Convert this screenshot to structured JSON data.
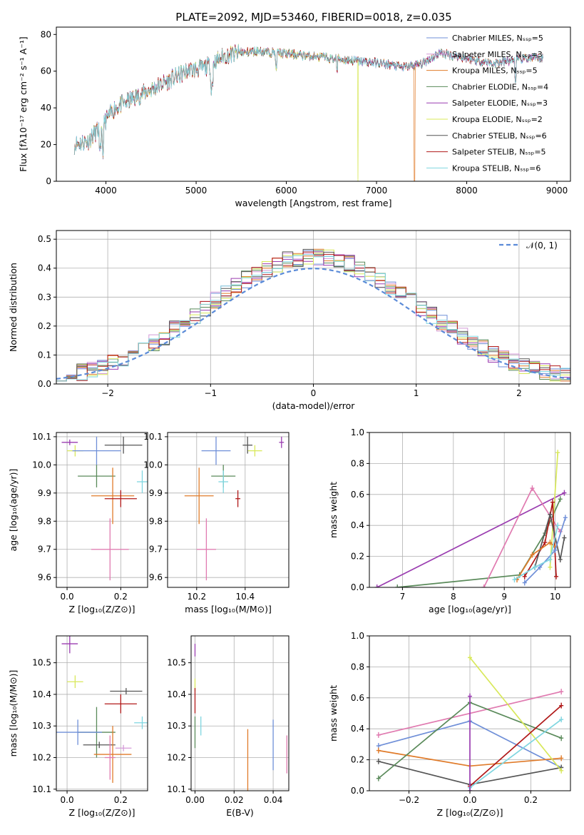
{
  "figure": {
    "title": "PLATE=2092, MJD=53460, FIBERID=0018, z=0.035"
  },
  "colors": {
    "Chabrier MILES": "#6f8fd8",
    "Salpeter MILES": "#d49ad8",
    "Kroupa MILES": "#e07b2a",
    "Chabrier ELODIE": "#5a8a5a",
    "Salpeter ELODIE": "#9a3cb0",
    "Kroupa ELODIE": "#d8e85a",
    "Chabrier STELIB": "#555555",
    "Salpeter STELIB": "#b01818",
    "Kroupa STELIB": "#7fd6e0",
    "pink": "#e07ab0",
    "gauss": "#5b8bd8"
  },
  "chart_data": [
    {
      "id": "spectrum",
      "type": "line",
      "title": "PLATE=2092, MJD=53460, FIBERID=0018, z=0.035",
      "xlabel": "wavelength [Angstrom, rest frame]",
      "ylabel": "Flux [fλ10⁻¹⁷ erg cm⁻² s⁻¹ A⁻¹]",
      "xlim": [
        3450,
        9150
      ],
      "ylim": [
        0,
        84
      ],
      "xticks": [
        4000,
        5000,
        6000,
        7000,
        8000,
        9000
      ],
      "yticks": [
        0,
        20,
        40,
        60,
        80
      ],
      "legend_position": "top-right",
      "legend": [
        "Chabrier MILES, Nₛₛₚ=5",
        "Salpeter MILES, Nₛₛₚ=3",
        "Kroupa MILES, Nₛₛₚ=5",
        "Chabrier ELODIE, Nₛₛₚ=4",
        "Salpeter ELODIE, Nₛₛₚ=3",
        "Kroupa ELODIE, Nₛₛₚ=2",
        "Chabrier STELIB, Nₛₛₚ=6",
        "Salpeter STELIB, Nₛₛₚ=5",
        "Kroupa STELIB, Nₛₛₚ=6"
      ],
      "continuum": {
        "x": [
          3650,
          3800,
          3950,
          4100,
          4300,
          4500,
          4700,
          4900,
          5100,
          5300,
          5500,
          5700,
          5900,
          6100,
          6300,
          6500,
          6700,
          6900,
          7100,
          7300,
          7500,
          7700,
          7900,
          8100,
          8300,
          8500,
          8700,
          8850
        ],
        "y": [
          20,
          22,
          30,
          40,
          45,
          50,
          55,
          60,
          62,
          68,
          70,
          71,
          70,
          69,
          68,
          67,
          66,
          65,
          64,
          62,
          64,
          70,
          68,
          66,
          64,
          66,
          67,
          67
        ]
      }
    },
    {
      "id": "residuals",
      "type": "histogram",
      "xlabel": "(data-model)/error",
      "ylabel": "Normed distribution",
      "xlim": [
        -2.5,
        2.5
      ],
      "ylim": [
        0,
        0.53
      ],
      "xticks": [
        -2,
        -1,
        0,
        1,
        2
      ],
      "yticks": [
        0.0,
        0.1,
        0.2,
        0.3,
        0.4,
        0.5
      ],
      "grid": true,
      "legend_position": "top-right",
      "legend": [
        "𝒩(0, 1)"
      ],
      "bin_width": 0.1
    },
    {
      "id": "age_vs_Z",
      "type": "errorbar",
      "xlabel": "Z [log₁₀(Z/Z⊙)]",
      "ylabel": "age  [log₁₀(age/yr)]",
      "xlim": [
        -0.04,
        0.3
      ],
      "ylim": [
        9.565,
        10.115
      ],
      "xticks": [
        0.0,
        0.2
      ],
      "yticks": [
        9.6,
        9.7,
        9.8,
        9.9,
        10.0,
        10.1
      ],
      "grid": true,
      "points": [
        {
          "model": "Salpeter ELODIE",
          "x": 0.01,
          "y": 10.08,
          "xerr": 0.03,
          "yerr": 0.01
        },
        {
          "model": "Kroupa ELODIE",
          "x": 0.03,
          "y": 10.05,
          "xerr": 0.03,
          "yerr": 0.02
        },
        {
          "model": "Chabrier MILES",
          "x": 0.11,
          "y": 10.05,
          "xerr": 0.09,
          "yerr": 0.05
        },
        {
          "model": "Chabrier STELIB",
          "x": 0.21,
          "y": 10.07,
          "xerr": 0.07,
          "yerr": 0.03
        },
        {
          "model": "Chabrier ELODIE",
          "x": 0.11,
          "y": 9.96,
          "xerr": 0.07,
          "yerr": 0.04
        },
        {
          "model": "Kroupa STELIB",
          "x": 0.28,
          "y": 9.94,
          "xerr": 0.02,
          "yerr": 0.04
        },
        {
          "model": "Kroupa MILES",
          "x": 0.17,
          "y": 9.89,
          "xerr": 0.08,
          "yerr": 0.1
        },
        {
          "model": "Salpeter STELIB",
          "x": 0.2,
          "y": 9.88,
          "xerr": 0.06,
          "yerr": 0.03
        },
        {
          "model": "pink",
          "x": 0.16,
          "y": 9.7,
          "xerr": 0.07,
          "yerr": 0.11
        }
      ]
    },
    {
      "id": "age_vs_mass",
      "type": "errorbar",
      "xlabel": "mass [log₁₀(M/M⊙)]",
      "ylabel": "",
      "xlim": [
        10.08,
        10.58
      ],
      "ylim": [
        9.565,
        10.115
      ],
      "xticks": [
        10.2,
        10.4
      ],
      "yticks": [
        9.6,
        9.7,
        9.8,
        9.9,
        10.0,
        10.1
      ],
      "grid": true,
      "points": [
        {
          "model": "Salpeter ELODIE",
          "x": 10.55,
          "y": 10.08,
          "xerr": 0.01,
          "yerr": 0.02
        },
        {
          "model": "Kroupa ELODIE",
          "x": 10.44,
          "y": 10.05,
          "xerr": 0.03,
          "yerr": 0.02
        },
        {
          "model": "Chabrier MILES",
          "x": 10.28,
          "y": 10.05,
          "xerr": 0.06,
          "yerr": 0.05
        },
        {
          "model": "Chabrier STELIB",
          "x": 10.41,
          "y": 10.07,
          "xerr": 0.02,
          "yerr": 0.03
        },
        {
          "model": "Chabrier ELODIE",
          "x": 10.31,
          "y": 9.96,
          "xerr": 0.05,
          "yerr": 0.04
        },
        {
          "model": "Kroupa STELIB",
          "x": 10.31,
          "y": 9.94,
          "xerr": 0.02,
          "yerr": 0.04
        },
        {
          "model": "Kroupa MILES",
          "x": 10.21,
          "y": 9.89,
          "xerr": 0.06,
          "yerr": 0.1
        },
        {
          "model": "Salpeter STELIB",
          "x": 10.37,
          "y": 9.88,
          "xerr": 0.01,
          "yerr": 0.03
        },
        {
          "model": "pink",
          "x": 10.24,
          "y": 9.7,
          "xerr": 0.04,
          "yerr": 0.11
        }
      ]
    },
    {
      "id": "weight_vs_age",
      "type": "line",
      "xlabel": "age  [log₁₀(age/yr)]",
      "ylabel": "mass weight",
      "xlim": [
        6.35,
        10.3
      ],
      "ylim": [
        0,
        1.0
      ],
      "xticks": [
        7,
        8,
        9,
        10
      ],
      "yticks": [
        0.0,
        0.2,
        0.4,
        0.6,
        0.8,
        1.0
      ],
      "grid": true,
      "series": [
        {
          "model": "Salpeter ELODIE",
          "x": [
            6.5,
            10.18
          ],
          "y": [
            0.0,
            0.61
          ]
        },
        {
          "model": "Chabrier ELODIE",
          "x": [
            6.9,
            9.3,
            9.8,
            10.1
          ],
          "y": [
            0.0,
            0.08,
            0.35,
            0.57
          ]
        },
        {
          "model": "pink",
          "x": [
            8.6,
            9.55,
            10.1
          ],
          "y": [
            0.0,
            0.64,
            0.36
          ]
        },
        {
          "model": "Kroupa ELODIE",
          "x": [
            9.9,
            10.05
          ],
          "y": [
            0.13,
            0.87
          ]
        },
        {
          "model": "Salpeter STELIB",
          "x": [
            9.4,
            9.8,
            9.95,
            10.02
          ],
          "y": [
            0.07,
            0.29,
            0.55,
            0.07
          ]
        },
        {
          "model": "Chabrier STELIB",
          "x": [
            9.6,
            9.9,
            10.1,
            10.18
          ],
          "y": [
            0.13,
            0.47,
            0.18,
            0.32
          ]
        },
        {
          "model": "Kroupa MILES",
          "x": [
            9.25,
            9.55,
            9.9,
            10.0
          ],
          "y": [
            0.05,
            0.21,
            0.29,
            0.26
          ]
        },
        {
          "model": "Chabrier MILES",
          "x": [
            9.4,
            9.7,
            10.0,
            10.2
          ],
          "y": [
            0.03,
            0.13,
            0.24,
            0.45
          ]
        },
        {
          "model": "Kroupa STELIB",
          "x": [
            9.2,
            9.6,
            9.9,
            10.05
          ],
          "y": [
            0.05,
            0.13,
            0.18,
            0.4
          ]
        }
      ]
    },
    {
      "id": "mass_vs_Z",
      "type": "errorbar",
      "xlabel": "Z [log₁₀(Z/Z⊙)]",
      "ylabel": "mass [log₁₀(M/M⊙)]",
      "xlim": [
        -0.04,
        0.3
      ],
      "ylim": [
        10.095,
        10.585
      ],
      "xticks": [
        0.0,
        0.2
      ],
      "yticks": [
        10.1,
        10.2,
        10.3,
        10.4,
        10.5
      ],
      "grid": true,
      "points": [
        {
          "model": "Salpeter ELODIE",
          "x": 0.01,
          "y": 10.56,
          "xerr": 0.03,
          "yerr": 0.03
        },
        {
          "model": "Kroupa ELODIE",
          "x": 0.03,
          "y": 10.44,
          "xerr": 0.03,
          "yerr": 0.02
        },
        {
          "model": "Chabrier STELIB",
          "x": 0.22,
          "y": 10.41,
          "xerr": 0.06,
          "yerr": 0.01
        },
        {
          "model": "Salpeter STELIB",
          "x": 0.2,
          "y": 10.37,
          "xerr": 0.06,
          "yerr": 0.03
        },
        {
          "model": "Kroupa STELIB",
          "x": 0.28,
          "y": 10.31,
          "xerr": 0.03,
          "yerr": 0.02
        },
        {
          "model": "Chabrier ELODIE",
          "x": 0.11,
          "y": 10.28,
          "xerr": 0.07,
          "yerr": 0.08
        },
        {
          "model": "Chabrier MILES",
          "x": 0.04,
          "y": 10.28,
          "xerr": 0.09,
          "yerr": 0.04
        },
        {
          "model": "Chabrier STELIB",
          "x": 0.12,
          "y": 10.24,
          "xerr": 0.06,
          "yerr": 0.01
        },
        {
          "model": "Salpeter MILES",
          "x": 0.21,
          "y": 10.23,
          "xerr": 0.03,
          "yerr": 0.01
        },
        {
          "model": "Kroupa MILES",
          "x": 0.17,
          "y": 10.21,
          "xerr": 0.07,
          "yerr": 0.09
        },
        {
          "model": "pink",
          "x": 0.16,
          "y": 10.2,
          "xerr": 0.02,
          "yerr": 0.07
        }
      ]
    },
    {
      "id": "mass_vs_EBV",
      "type": "errorbar",
      "xlabel": "E(B-V)",
      "ylabel": "",
      "xlim": [
        -0.002,
        0.048
      ],
      "ylim": [
        10.095,
        10.585
      ],
      "xticks": [
        0.0,
        0.02,
        0.04
      ],
      "yticks": [
        10.1,
        10.2,
        10.3,
        10.4,
        10.5
      ],
      "grid": true,
      "points": [
        {
          "model": "Salpeter ELODIE",
          "x": 0.0,
          "y": 10.54,
          "xerr": 0.0,
          "yerr": 0.02
        },
        {
          "model": "Kroupa ELODIE",
          "x": 0.0,
          "y": 10.43,
          "xerr": 0.0,
          "yerr": 0.02
        },
        {
          "model": "Salpeter STELIB",
          "x": 0.0,
          "y": 10.38,
          "xerr": 0.0,
          "yerr": 0.04
        },
        {
          "model": "Chabrier ELODIE",
          "x": 0.0,
          "y": 10.28,
          "xerr": 0.0,
          "yerr": 0.05
        },
        {
          "model": "Kroupa STELIB",
          "x": 0.003,
          "y": 10.3,
          "xerr": 0.0,
          "yerr": 0.03
        },
        {
          "model": "Kroupa MILES",
          "x": 0.027,
          "y": 10.19,
          "xerr": 0.0,
          "yerr": 0.1
        },
        {
          "model": "Chabrier MILES",
          "x": 0.04,
          "y": 10.24,
          "xerr": 0.0,
          "yerr": 0.08
        },
        {
          "model": "pink",
          "x": 0.047,
          "y": 10.21,
          "xerr": 0.0,
          "yerr": 0.06
        }
      ]
    },
    {
      "id": "weight_vs_Z",
      "type": "line",
      "xlabel": "Z [log₁₀(Z/Z⊙)]",
      "ylabel": "mass weight",
      "xlim": [
        -0.33,
        0.33
      ],
      "ylim": [
        0,
        1.0
      ],
      "xticks": [
        -0.2,
        0.0,
        0.2
      ],
      "yticks": [
        0.0,
        0.2,
        0.4,
        0.6,
        0.8,
        1.0
      ],
      "grid": true,
      "series": [
        {
          "model": "pink",
          "x": [
            -0.3,
            0.3
          ],
          "y": [
            0.36,
            0.64
          ]
        },
        {
          "model": "Chabrier MILES",
          "x": [
            -0.3,
            0.0,
            0.3
          ],
          "y": [
            0.29,
            0.45,
            0.15
          ]
        },
        {
          "model": "Kroupa MILES",
          "x": [
            -0.3,
            0.0,
            0.3
          ],
          "y": [
            0.26,
            0.16,
            0.21
          ]
        },
        {
          "model": "Chabrier STELIB",
          "x": [
            -0.3,
            0.0,
            0.3
          ],
          "y": [
            0.19,
            0.04,
            0.15
          ]
        },
        {
          "model": "Chabrier ELODIE",
          "x": [
            -0.3,
            0.0,
            0.3
          ],
          "y": [
            0.08,
            0.57,
            0.34
          ]
        },
        {
          "model": "Kroupa ELODIE",
          "x": [
            0.0,
            0.3
          ],
          "y": [
            0.86,
            0.13
          ]
        },
        {
          "model": "Salpeter STELIB",
          "x": [
            0.0,
            0.3
          ],
          "y": [
            0.03,
            0.55
          ]
        },
        {
          "model": "Kroupa STELIB",
          "x": [
            0.0,
            0.3
          ],
          "y": [
            0.02,
            0.46
          ]
        },
        {
          "model": "Salpeter ELODIE",
          "x": [
            0.0,
            0.0
          ],
          "y": [
            0.0,
            0.61
          ]
        }
      ]
    }
  ]
}
